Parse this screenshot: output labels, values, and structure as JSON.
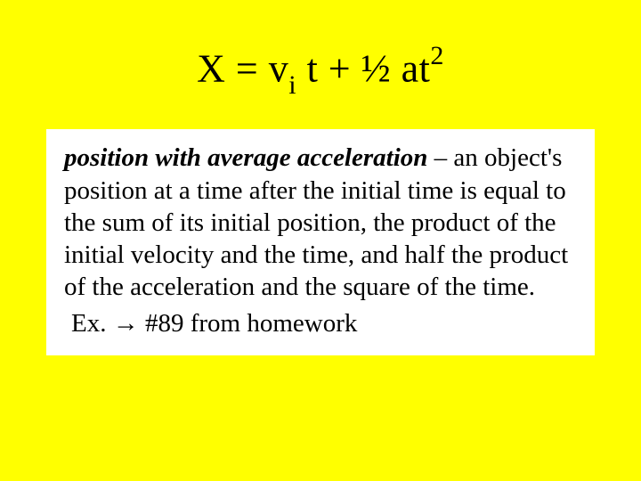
{
  "slide": {
    "background_color": "#ffff00",
    "outer_background": "#000000",
    "body_box_background": "#ffffff"
  },
  "formula": {
    "X": "X",
    "eq": " = ",
    "v": "v",
    "sub_i": "i",
    "space": " ",
    "t": "t",
    "plus": " + ",
    "half": "½ ",
    "a": "a",
    "t2_base": "t",
    "sup_2": "2",
    "fontsize": 44,
    "color": "#000000"
  },
  "body": {
    "lead": "position with average acceleration",
    "dash": " – ",
    "rest": "an object's position at a time after the initial time is equal to the sum of its initial position, the product of the initial velocity and the time, and half the product of the acceleration and the square of the time.",
    "fontsize": 29,
    "color": "#000000"
  },
  "example": {
    "prefix": "Ex. ",
    "arrow": "→",
    "rest": " #89 from homework"
  }
}
